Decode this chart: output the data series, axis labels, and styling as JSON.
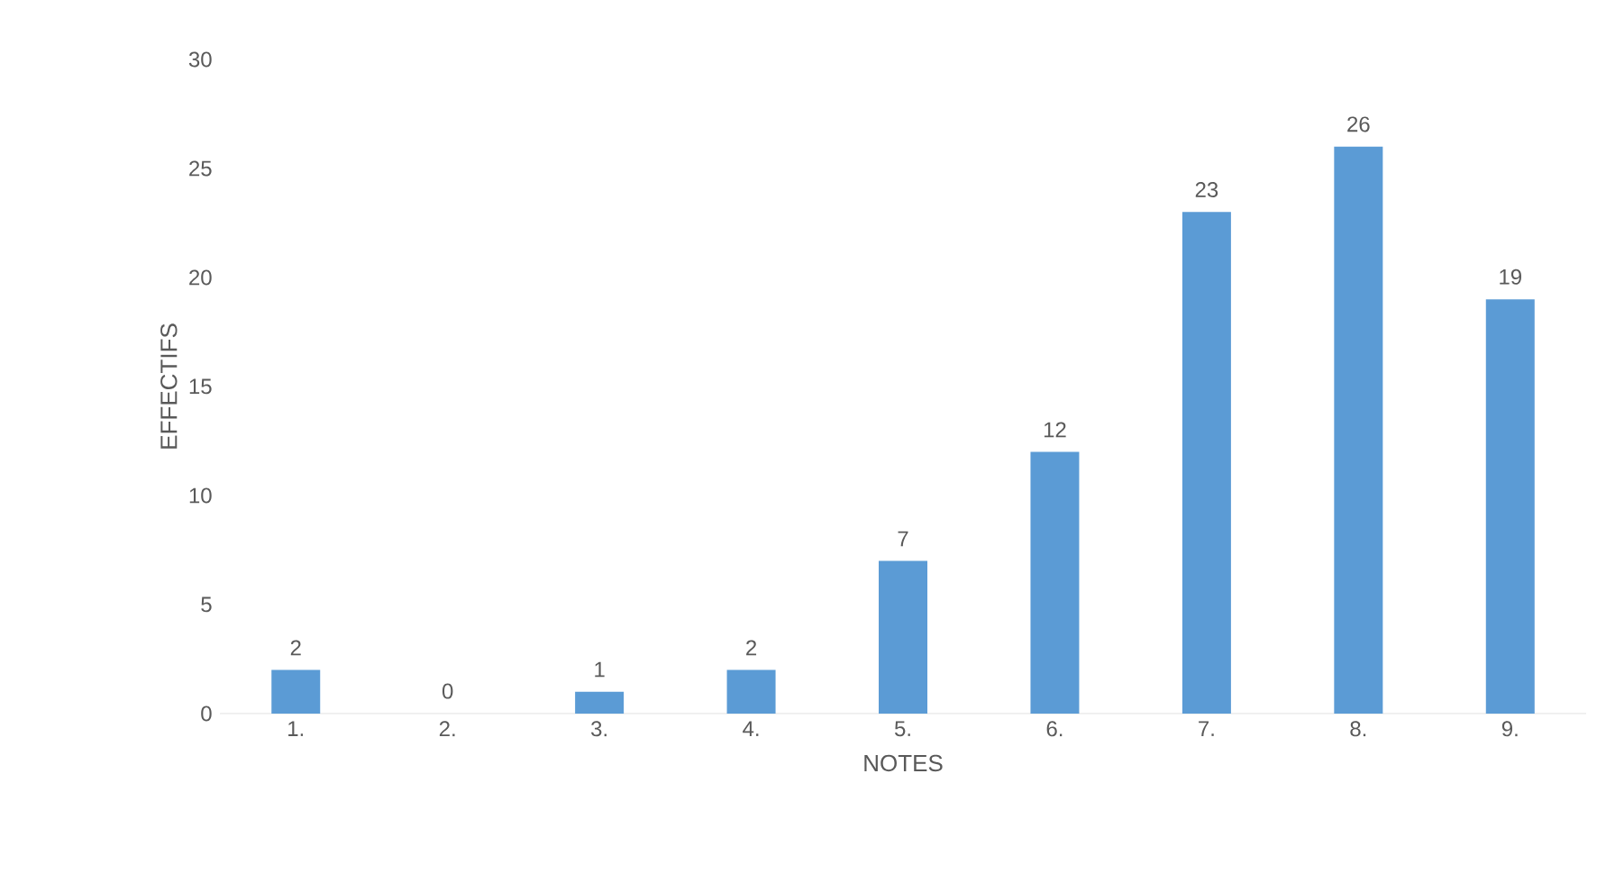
{
  "chart_data": {
    "type": "bar",
    "xlabel": "NOTES",
    "ylabel": "EFFECTIFS",
    "categories": [
      "1.",
      "2.",
      "3.",
      "4.",
      "5.",
      "6.",
      "7.",
      "8.",
      "9."
    ],
    "values": [
      2,
      0,
      1,
      2,
      7,
      12,
      23,
      26,
      19
    ],
    "color": "#5b9bd5",
    "ylim": [
      0,
      30
    ],
    "yticks": [
      0,
      5,
      10,
      15,
      20,
      25,
      30
    ],
    "data_labels": true
  }
}
